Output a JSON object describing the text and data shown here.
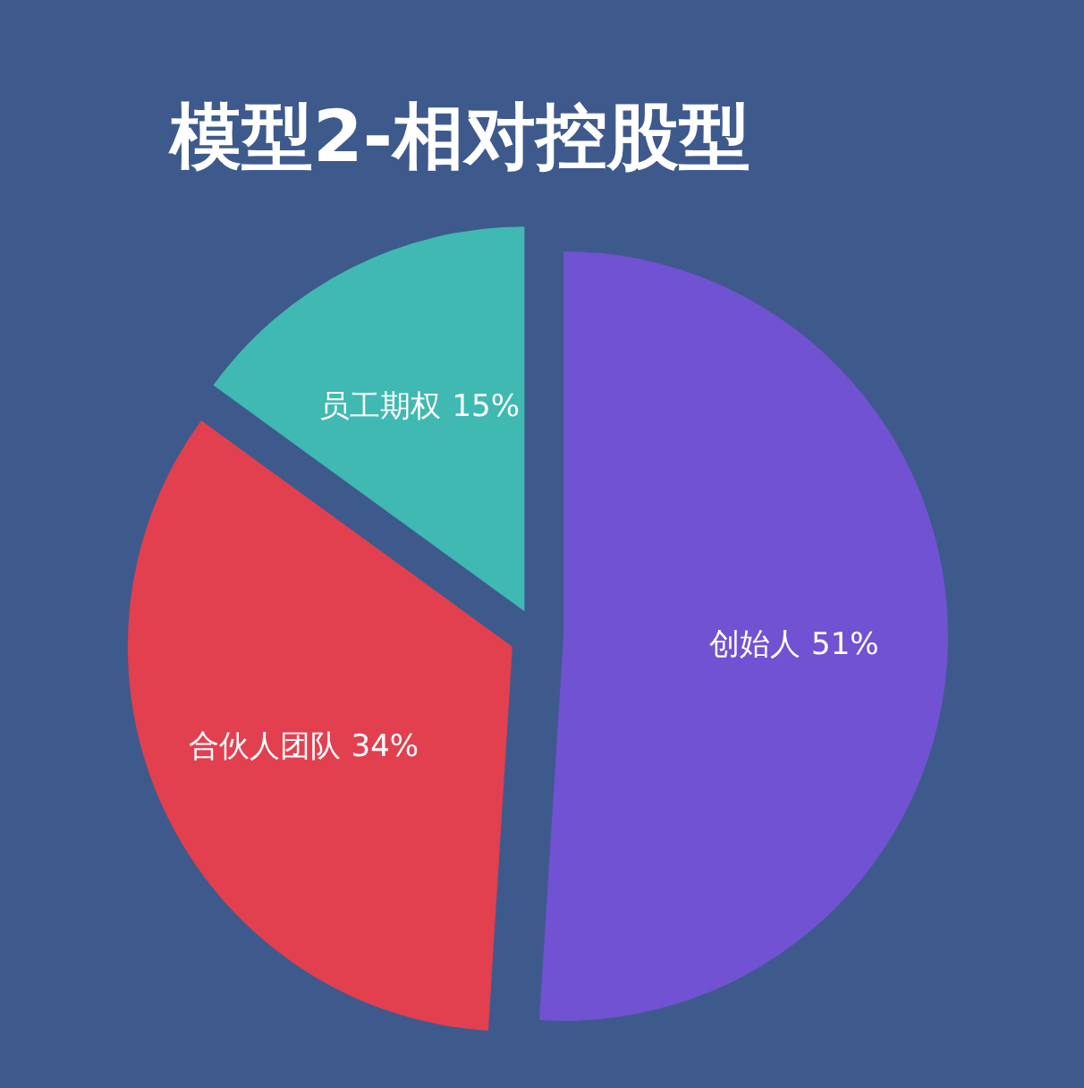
{
  "chart_data": {
    "type": "pie",
    "title": "模型2-相对控股型",
    "categories": [
      "创始人",
      "合伙人团队",
      "员工期权"
    ],
    "values": [
      51,
      34,
      15
    ],
    "value_labels": [
      "51%",
      "34%",
      "15%"
    ],
    "colors": [
      "#7152d2",
      "#e2404f",
      "#3fb9b2"
    ]
  }
}
